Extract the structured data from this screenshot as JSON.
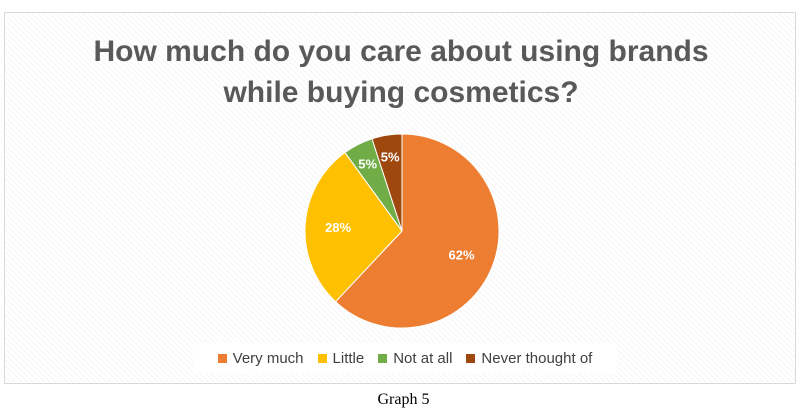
{
  "chart_data": {
    "type": "pie",
    "title": [
      "How much do you care about using brands",
      "while buying cosmetics?"
    ],
    "categories": [
      "Very much",
      "Little",
      "Not at all",
      "Never thought of"
    ],
    "values": [
      62,
      28,
      5,
      5
    ],
    "data_labels": [
      "62%",
      "28%",
      "5%",
      "5%"
    ],
    "colors": [
      "#ED7D31",
      "#FFC000",
      "#70AD47",
      "#9E480E"
    ],
    "start_angle_deg": 0,
    "legend_position": "bottom"
  },
  "caption": "Graph 5"
}
